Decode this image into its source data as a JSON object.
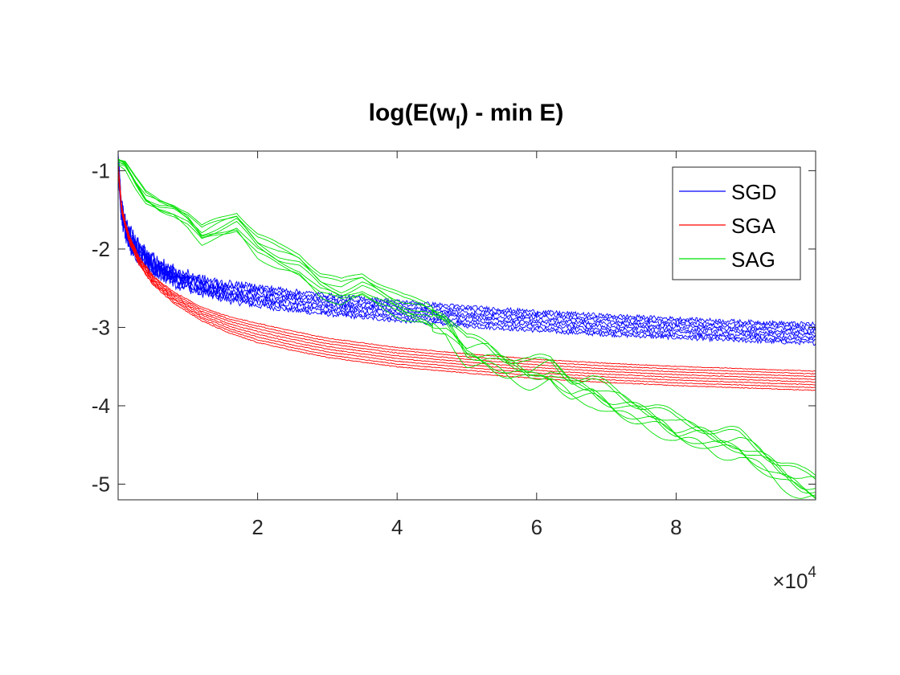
{
  "chart_data": {
    "type": "line",
    "title": {
      "main": "log(E(w",
      "sub": "l",
      "rest": ") - min E)"
    },
    "x_exponent": {
      "base": "×10",
      "power": "4"
    },
    "xlim": [
      0,
      100000
    ],
    "ylim": [
      -5.2,
      -0.75
    ],
    "x_ticks": [
      20000,
      40000,
      60000,
      80000
    ],
    "x_tick_labels": [
      "2",
      "4",
      "6",
      "8"
    ],
    "y_ticks": [
      -1,
      -2,
      -3,
      -4,
      -5
    ],
    "y_tick_labels": [
      "-1",
      "-2",
      "-3",
      "-4",
      "-5"
    ],
    "grid": false,
    "legend_position": "top-right",
    "runs_per_series": 8,
    "series": [
      {
        "name": "SGD",
        "color": "#0000ff",
        "x": [
          0,
          500,
          1500,
          3000,
          5000,
          8000,
          12000,
          16000,
          20000,
          25000,
          30000,
          40000,
          50000,
          60000,
          70000,
          80000,
          90000,
          100000
        ],
        "y": [
          -0.9,
          -1.55,
          -1.85,
          -2.05,
          -2.2,
          -2.35,
          -2.47,
          -2.55,
          -2.6,
          -2.66,
          -2.71,
          -2.79,
          -2.86,
          -2.92,
          -2.97,
          -3.01,
          -3.05,
          -3.08
        ]
      },
      {
        "name": "SGA",
        "color": "#ff0000",
        "x": [
          0,
          500,
          1500,
          3000,
          5000,
          8000,
          12000,
          16000,
          20000,
          25000,
          30000,
          40000,
          50000,
          60000,
          70000,
          80000,
          90000,
          100000
        ],
        "y": [
          -0.95,
          -1.5,
          -1.85,
          -2.15,
          -2.4,
          -2.62,
          -2.83,
          -2.97,
          -3.07,
          -3.17,
          -3.26,
          -3.38,
          -3.46,
          -3.53,
          -3.58,
          -3.62,
          -3.65,
          -3.68
        ]
      },
      {
        "name": "SAG",
        "color": "#00e000",
        "x": [
          0,
          1000,
          2500,
          4000,
          6000,
          8000,
          10000,
          12000,
          14000,
          17000,
          20000,
          23000,
          26000,
          29000,
          32000,
          35000,
          38000,
          41000,
          44000,
          47000,
          50000,
          53000,
          56000,
          59000,
          62000,
          65000,
          68000,
          71000,
          74000,
          77000,
          80000,
          83000,
          86000,
          89000,
          92000,
          95000,
          98000,
          100000
        ],
        "y": [
          -0.88,
          -0.92,
          -1.15,
          -1.35,
          -1.45,
          -1.5,
          -1.62,
          -1.82,
          -1.75,
          -1.65,
          -1.95,
          -2.1,
          -2.2,
          -2.45,
          -2.55,
          -2.45,
          -2.6,
          -2.75,
          -2.82,
          -2.95,
          -3.3,
          -3.35,
          -3.5,
          -3.58,
          -3.55,
          -3.75,
          -3.8,
          -3.95,
          -4.05,
          -4.15,
          -4.3,
          -4.35,
          -4.45,
          -4.5,
          -4.65,
          -4.85,
          -5.0,
          -5.05
        ]
      }
    ]
  }
}
